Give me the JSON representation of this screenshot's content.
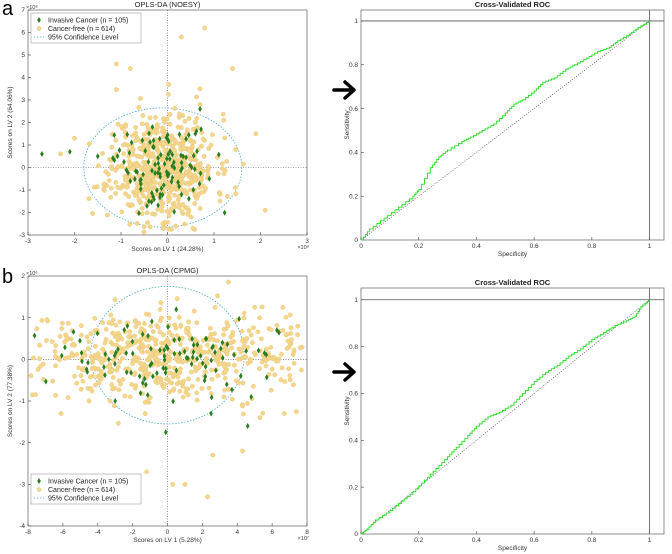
{
  "labels": {
    "a": "a",
    "b": "b"
  },
  "arrow_icon": "right-arrow-icon",
  "colors": {
    "invasive": "#2a7d1e",
    "cancer_free": "#f3d68c",
    "cancer_free_edge": "#e4c06a",
    "roc": "#22dd22",
    "ellipse": "#4bb0c0"
  },
  "chart_data": [
    {
      "id": "a-left",
      "type": "scatter",
      "title": "OPLS-DA (NOESY)",
      "xlabel": "Scores on LV 1 (24.28%)",
      "ylabel": "Scores on LV 2 (64.06%)",
      "x_exponent": "×10⁹",
      "y_exponent": "×10⁸",
      "xlim": [
        -3,
        3
      ],
      "ylim": [
        -3,
        7
      ],
      "xticks": [
        "-3",
        "-2",
        "-1",
        "0",
        "1",
        "2",
        "3"
      ],
      "yticks": [
        "-3",
        "-2",
        "-1",
        "0",
        "1",
        "2",
        "3",
        "4",
        "5",
        "6",
        "7"
      ],
      "legend_position": "top-left",
      "legend": [
        "Invasive Cancer (n = 105)",
        "Cancer-free (n = 614)",
        "95% Confidence Level"
      ],
      "ellipse": {
        "cx": -0.1,
        "cy": 0,
        "rx": 1.7,
        "ry": 2.65
      },
      "series": [
        {
          "name": "Invasive Cancer (n = 105)",
          "marker": "diamond",
          "n": 105,
          "sample_points": [
            [
              -2.7,
              0.6
            ],
            [
              -2.1,
              0.7
            ],
            [
              -1.5,
              0.5
            ],
            [
              0.6,
              1.5
            ],
            [
              0.7,
              2.6
            ],
            [
              -0.8,
              -0.6
            ],
            [
              0.3,
              -1.2
            ],
            [
              -0.3,
              1.2
            ],
            [
              0.9,
              -0.5
            ],
            [
              -0.4,
              -1.5
            ]
          ]
        },
        {
          "name": "Cancer-free (n = 614)",
          "marker": "circle",
          "n": 614,
          "sample_points": [
            [
              -1.1,
              4.6
            ],
            [
              -0.8,
              4.4
            ],
            [
              0.8,
              6.2
            ],
            [
              0.3,
              5.8
            ],
            [
              0.7,
              3.5
            ],
            [
              1.9,
              1.5
            ],
            [
              2.1,
              -1.9
            ],
            [
              -2.3,
              0.6
            ],
            [
              -2.0,
              1.3
            ],
            [
              1.4,
              4.4
            ],
            [
              0.7,
              2.8
            ],
            [
              -0.1,
              -2.5
            ]
          ]
        }
      ]
    },
    {
      "id": "a-right",
      "type": "line",
      "title": "Cross-Validated ROC",
      "xlabel": "Specificity",
      "ylabel": "Sensitivity",
      "xlim": [
        0,
        1.05
      ],
      "ylim": [
        0,
        1.05
      ],
      "xticks": [
        "0",
        "0.2",
        "0.4",
        "0.6",
        "0.8",
        "1"
      ],
      "yticks": [
        "0",
        "0.2",
        "0.4",
        "0.6",
        "0.8",
        "1"
      ],
      "series": [
        {
          "name": "",
          "x": [
            0,
            0.03,
            0.08,
            0.13,
            0.18,
            0.2,
            0.24,
            0.27,
            0.3,
            0.35,
            0.38,
            0.42,
            0.46,
            0.5,
            0.53,
            0.56,
            0.6,
            0.63,
            0.67,
            0.71,
            0.74,
            0.78,
            0.82,
            0.86,
            0.89,
            0.93,
            0.96,
            1.0
          ],
          "y": [
            0,
            0.05,
            0.1,
            0.15,
            0.2,
            0.23,
            0.33,
            0.38,
            0.41,
            0.45,
            0.47,
            0.5,
            0.53,
            0.58,
            0.62,
            0.64,
            0.68,
            0.72,
            0.74,
            0.78,
            0.8,
            0.83,
            0.86,
            0.88,
            0.91,
            0.94,
            0.97,
            1.0
          ]
        }
      ]
    },
    {
      "id": "b-left",
      "type": "scatter",
      "title": "OPLS-DA (CPMG)",
      "xlabel": "Scores on LV 1 (5.28%)",
      "ylabel": "Scores on LV 2 (77.38%)",
      "x_exponent": "×10⁷",
      "y_exponent": "×10⁶",
      "xlim": [
        -8,
        8
      ],
      "ylim": [
        -4,
        2
      ],
      "xticks": [
        "-8",
        "-6",
        "-4",
        "-2",
        "0",
        "2",
        "4",
        "6",
        "8"
      ],
      "yticks": [
        "-4",
        "-3",
        "-2",
        "-1",
        "0",
        "1",
        "2"
      ],
      "legend_position": "bottom-left",
      "legend": [
        "Invasive Cancer (n = 105)",
        "Cancer-free (n = 614)",
        "95% Confidence Level"
      ],
      "ellipse": {
        "cx": 0,
        "cy": 0.1,
        "rx": 4.4,
        "ry": 1.65
      },
      "series": [
        {
          "name": "Invasive Cancer (n = 105)",
          "marker": "diamond",
          "n": 105,
          "sample_points": [
            [
              -4.6,
              -0.3
            ],
            [
              -3.0,
              -1.0
            ],
            [
              -0.1,
              -1.75
            ],
            [
              4.6,
              -1.6
            ],
            [
              4.8,
              -0.9
            ],
            [
              4.2,
              -0.4
            ],
            [
              3.4,
              -0.6
            ],
            [
              2.5,
              -1.3
            ],
            [
              -2.3,
              0.8
            ],
            [
              0.5,
              1.2
            ]
          ]
        },
        {
          "name": "Cancer-free (n = 614)",
          "marker": "circle",
          "n": 614,
          "sample_points": [
            [
              -6.1,
              -1.3
            ],
            [
              -4.5,
              -1.0
            ],
            [
              -4.4,
              -0.7
            ],
            [
              -1.2,
              -2.7
            ],
            [
              0.3,
              -3.0
            ],
            [
              1.0,
              -3.0
            ],
            [
              2.3,
              -3.3
            ],
            [
              6.7,
              -1.3
            ],
            [
              4.3,
              -2.2
            ],
            [
              5.3,
              -1.4
            ],
            [
              -3.3,
              -1.0
            ],
            [
              2.6,
              -2.3
            ]
          ]
        }
      ]
    },
    {
      "id": "b-right",
      "type": "line",
      "title": "Cross-Validated ROC",
      "xlabel": "Specificity",
      "ylabel": "Sensitivity",
      "xlim": [
        0,
        1.05
      ],
      "ylim": [
        0,
        1.05
      ],
      "xticks": [
        "0",
        "0.2",
        "0.4",
        "0.6",
        "0.8",
        "1"
      ],
      "yticks": [
        "0",
        "0.2",
        "0.4",
        "0.6",
        "0.8",
        "1"
      ],
      "series": [
        {
          "name": "",
          "x": [
            0,
            0.02,
            0.05,
            0.1,
            0.14,
            0.18,
            0.22,
            0.26,
            0.3,
            0.33,
            0.37,
            0.4,
            0.44,
            0.48,
            0.52,
            0.56,
            0.6,
            0.64,
            0.68,
            0.72,
            0.76,
            0.8,
            0.84,
            0.88,
            0.92,
            0.95,
            0.97,
            1.0
          ],
          "y": [
            0,
            0.02,
            0.06,
            0.1,
            0.14,
            0.18,
            0.23,
            0.28,
            0.33,
            0.37,
            0.42,
            0.46,
            0.5,
            0.52,
            0.55,
            0.6,
            0.65,
            0.69,
            0.72,
            0.76,
            0.79,
            0.83,
            0.86,
            0.89,
            0.91,
            0.93,
            0.97,
            1.0
          ]
        }
      ]
    }
  ]
}
